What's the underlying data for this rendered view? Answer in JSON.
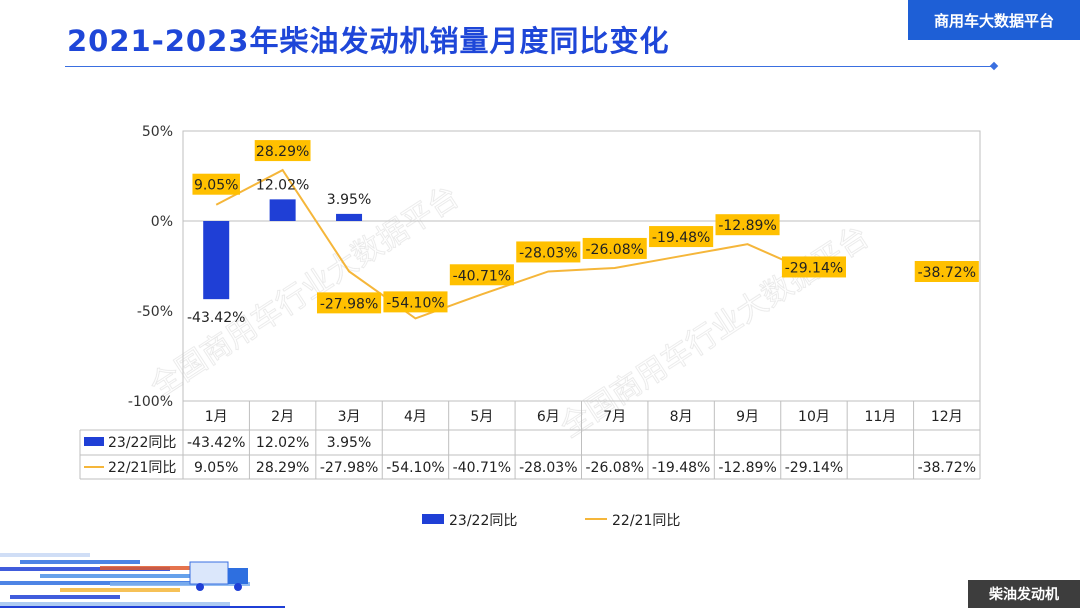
{
  "header": {
    "title": "2021-2023年柴油发动机销量月度同比变化",
    "brand": "商用车大数据平台"
  },
  "footer": {
    "tag": "柴油发动机"
  },
  "watermark": "全国商用车行业大数据平台",
  "colors": {
    "bar": "#1f3fd6",
    "line": "#f5b63a",
    "label_bg": "#ffc000",
    "title": "#1e46d8",
    "brand_bg": "#1e5fd6"
  },
  "chart_data": {
    "type": "bar",
    "title": "2021-2023年柴油发动机销量月度同比变化",
    "categories": [
      "1月",
      "2月",
      "3月",
      "4月",
      "5月",
      "6月",
      "7月",
      "8月",
      "9月",
      "10月",
      "11月",
      "12月"
    ],
    "y_ticks": [
      "50%",
      "0%",
      "-50%",
      "-100%"
    ],
    "ylim": [
      -100,
      50
    ],
    "series": [
      {
        "name": "23/22同比",
        "type": "bar",
        "values": [
          -43.42,
          12.02,
          3.95,
          null,
          null,
          null,
          null,
          null,
          null,
          null,
          null,
          null
        ],
        "labels": [
          "-43.42%",
          "12.02%",
          "3.95%",
          "",
          "",
          "",
          "",
          "",
          "",
          "",
          "",
          ""
        ]
      },
      {
        "name": "22/21同比",
        "type": "line",
        "values": [
          9.05,
          28.29,
          -27.98,
          -54.1,
          -40.71,
          -28.03,
          -26.08,
          -19.48,
          -12.89,
          -29.14,
          null,
          -38.72
        ],
        "labels": [
          "9.05%",
          "28.29%",
          "-27.98%",
          "-54.10%",
          "-40.71%",
          "-28.03%",
          "-26.08%",
          "-19.48%",
          "-12.89%",
          "-29.14%",
          "",
          "-38.72%"
        ]
      }
    ],
    "legend": [
      "23/22同比",
      "22/21同比"
    ]
  }
}
